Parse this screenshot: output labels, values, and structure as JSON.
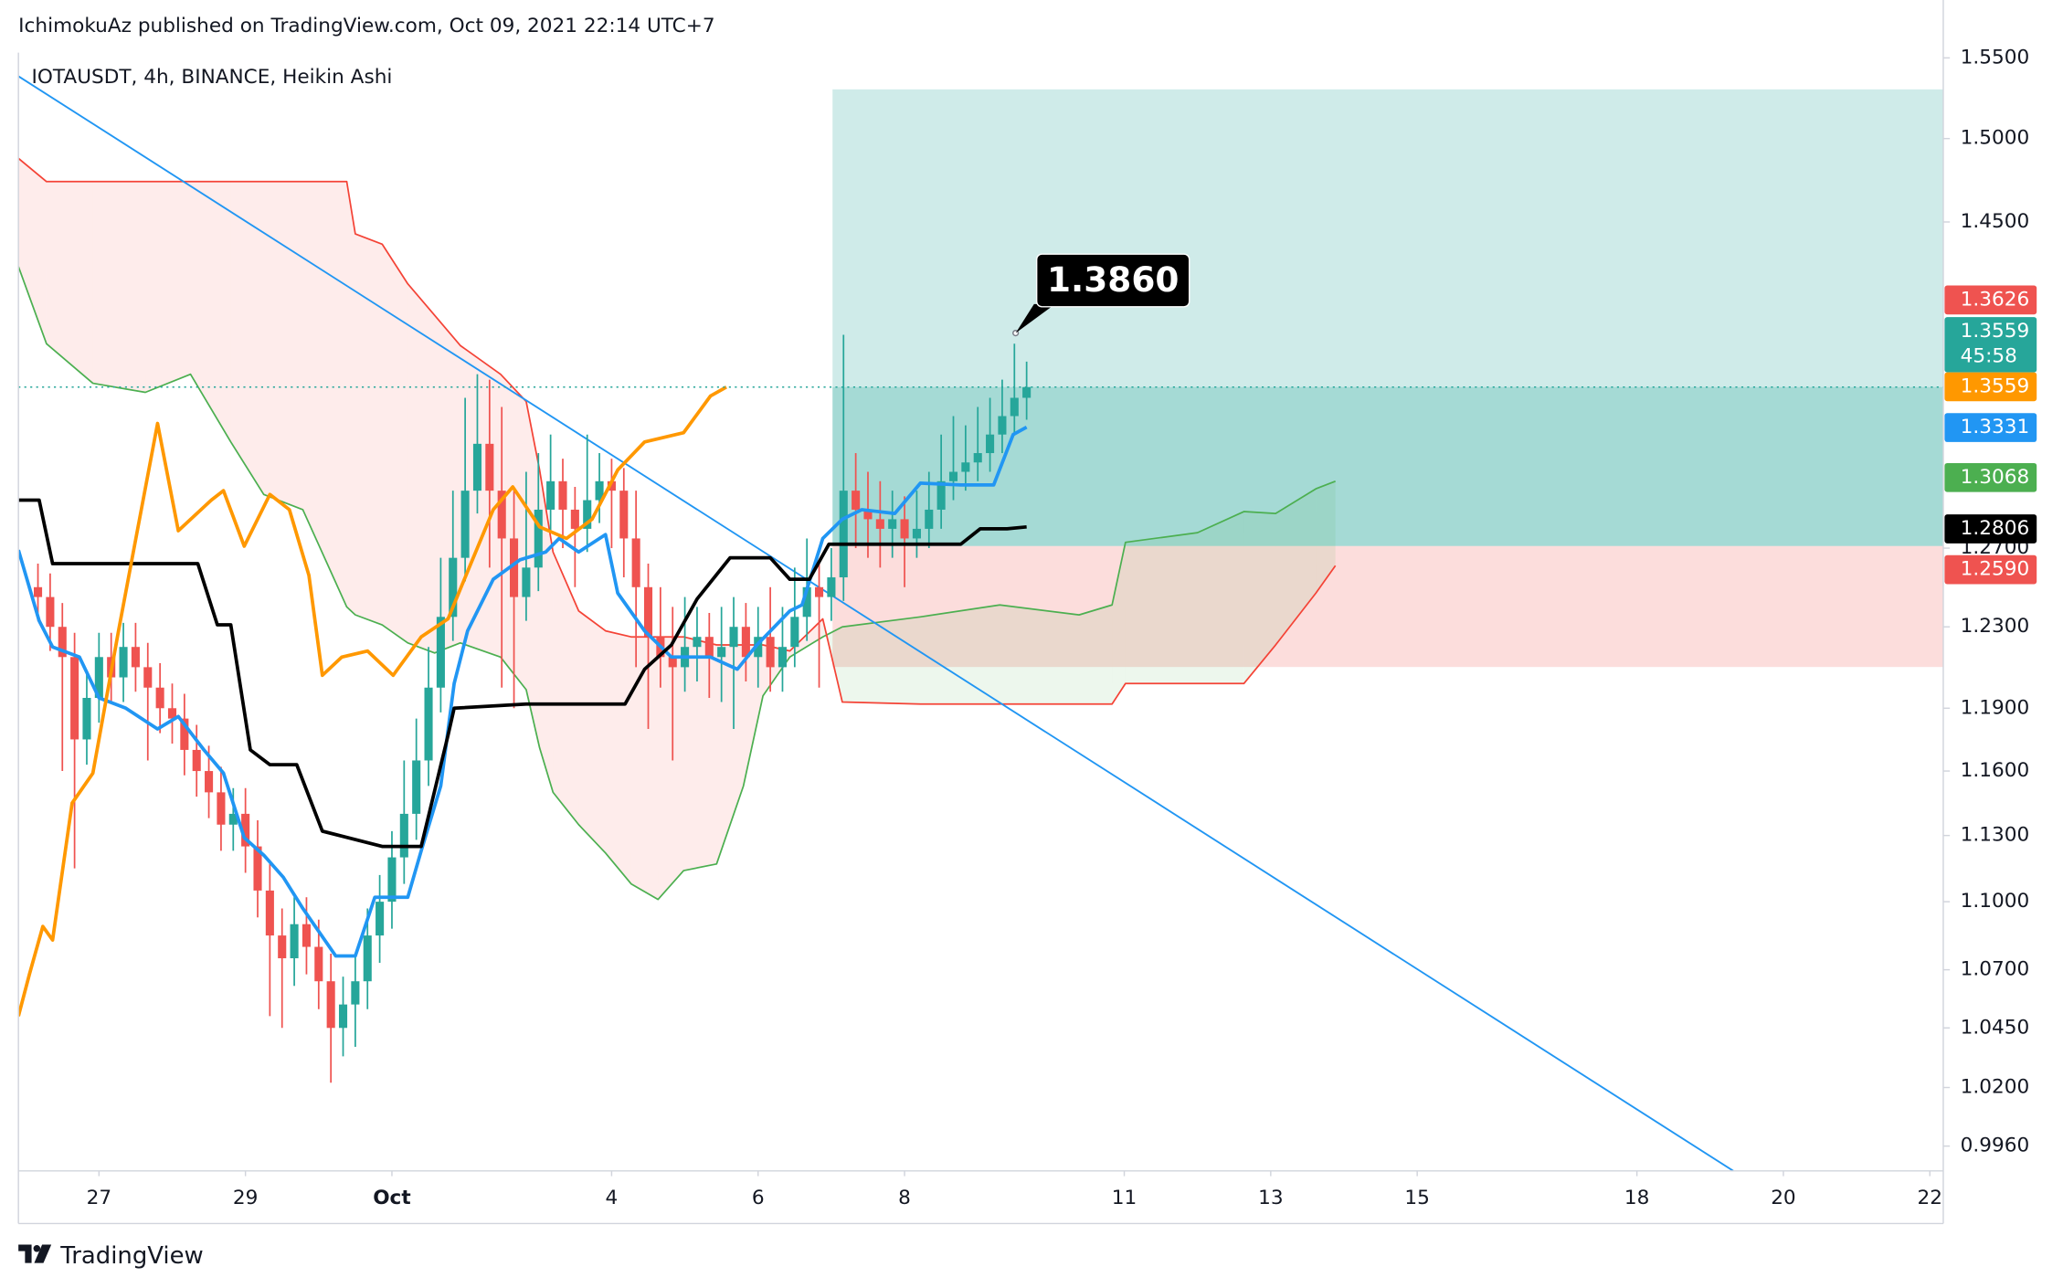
{
  "chart_data": {
    "type": "candlestick",
    "title": "IchimokuAz published on TradingView.com, Oct 09, 2021 22:14 UTC+7",
    "subtitle": "IOTAUSDT, 4h, BINANCE, Heikin Ashi",
    "footer": "TradingView",
    "log_scale": true,
    "xlim": [
      -6.6,
      151.1
    ],
    "ylim": [
      0.986,
      1.55
    ],
    "xticks": [
      {
        "value": 0,
        "label": "27"
      },
      {
        "value": 12,
        "label": "29"
      },
      {
        "value": 24,
        "label": "Oct"
      },
      {
        "value": 42,
        "label": "4"
      },
      {
        "value": 54,
        "label": "6"
      },
      {
        "value": 66,
        "label": "8"
      },
      {
        "value": 84,
        "label": "11"
      },
      {
        "value": 96,
        "label": "13"
      },
      {
        "value": 108,
        "label": "15"
      },
      {
        "value": 126,
        "label": "18"
      },
      {
        "value": 138,
        "label": "20"
      },
      {
        "value": 150,
        "label": "22"
      }
    ],
    "yticks": [
      {
        "value": 1.55,
        "label": "1.5500"
      },
      {
        "value": 1.5,
        "label": "1.5000"
      },
      {
        "value": 1.45,
        "label": "1.4500"
      },
      {
        "value": 1.27,
        "label": "1.2700"
      },
      {
        "value": 1.23,
        "label": "1.2300"
      },
      {
        "value": 1.19,
        "label": "1.1900"
      },
      {
        "value": 1.16,
        "label": "1.1600"
      },
      {
        "value": 1.13,
        "label": "1.1300"
      },
      {
        "value": 1.1,
        "label": "1.1000"
      },
      {
        "value": 1.07,
        "label": "1.0700"
      },
      {
        "value": 1.045,
        "label": "1.0450"
      },
      {
        "value": 1.02,
        "label": "1.0200"
      },
      {
        "value": 0.996,
        "label": "0.9960"
      }
    ],
    "up_color": "#26a69a",
    "down_color": "#ef5350",
    "x": [
      -5,
      -4,
      -3,
      -2,
      -1,
      0,
      1,
      2,
      3,
      4,
      5,
      6,
      7,
      8,
      9,
      10,
      11,
      12,
      13,
      14,
      15,
      16,
      17,
      18,
      19,
      20,
      21,
      22,
      23,
      24,
      25,
      26,
      27,
      28,
      29,
      30,
      31,
      32,
      33,
      34,
      35,
      36,
      37,
      38,
      39,
      40,
      41,
      42,
      43,
      44,
      45,
      46,
      47,
      48,
      49,
      50,
      51,
      52,
      53,
      54,
      55,
      56,
      57,
      58,
      59,
      60,
      61,
      62,
      63,
      64,
      65,
      66,
      67,
      68,
      69,
      70,
      71,
      72,
      73,
      74,
      75,
      76
    ],
    "open": [
      1.25,
      1.245,
      1.23,
      1.215,
      1.175,
      1.195,
      1.215,
      1.205,
      1.22,
      1.21,
      1.2,
      1.19,
      1.185,
      1.17,
      1.16,
      1.15,
      1.135,
      1.14,
      1.125,
      1.105,
      1.085,
      1.075,
      1.09,
      1.08,
      1.065,
      1.045,
      1.055,
      1.065,
      1.085,
      1.1,
      1.12,
      1.14,
      1.165,
      1.2,
      1.235,
      1.265,
      1.3,
      1.325,
      1.3,
      1.275,
      1.245,
      1.26,
      1.29,
      1.305,
      1.29,
      1.28,
      1.295,
      1.305,
      1.3,
      1.275,
      1.25,
      1.225,
      1.215,
      1.21,
      1.22,
      1.225,
      1.215,
      1.22,
      1.23,
      1.215,
      1.225,
      1.21,
      1.22,
      1.235,
      1.25,
      1.245,
      1.255,
      1.3,
      1.29,
      1.285,
      1.28,
      1.285,
      1.275,
      1.28,
      1.29,
      1.305,
      1.31,
      1.315,
      1.32,
      1.33,
      1.34,
      1.35
    ],
    "high": [
      1.262,
      1.257,
      1.242,
      1.227,
      1.207,
      1.227,
      1.227,
      1.232,
      1.232,
      1.222,
      1.212,
      1.202,
      1.197,
      1.182,
      1.172,
      1.162,
      1.152,
      1.152,
      1.137,
      1.117,
      1.097,
      1.102,
      1.102,
      1.092,
      1.077,
      1.067,
      1.077,
      1.097,
      1.112,
      1.132,
      1.165,
      1.185,
      1.22,
      1.265,
      1.3,
      1.35,
      1.363,
      1.36,
      1.345,
      1.3,
      1.31,
      1.32,
      1.33,
      1.317,
      1.302,
      1.33,
      1.32,
      1.317,
      1.312,
      1.3,
      1.262,
      1.25,
      1.24,
      1.245,
      1.24,
      1.237,
      1.24,
      1.245,
      1.242,
      1.24,
      1.25,
      1.24,
      1.26,
      1.275,
      1.262,
      1.27,
      1.385,
      1.32,
      1.31,
      1.305,
      1.3,
      1.297,
      1.3,
      1.31,
      1.33,
      1.34,
      1.335,
      1.345,
      1.35,
      1.36,
      1.38,
      1.37
    ],
    "low": [
      1.233,
      1.218,
      1.16,
      1.115,
      1.163,
      1.183,
      1.193,
      1.193,
      1.198,
      1.165,
      1.178,
      1.173,
      1.158,
      1.148,
      1.138,
      1.123,
      1.123,
      1.113,
      1.093,
      1.05,
      1.045,
      1.063,
      1.068,
      1.053,
      1.022,
      1.033,
      1.037,
      1.053,
      1.073,
      1.088,
      1.108,
      1.128,
      1.153,
      1.188,
      1.223,
      1.253,
      1.288,
      1.26,
      1.2,
      1.19,
      1.233,
      1.248,
      1.278,
      1.27,
      1.25,
      1.268,
      1.283,
      1.27,
      1.255,
      1.21,
      1.18,
      1.2,
      1.165,
      1.198,
      1.203,
      1.195,
      1.193,
      1.18,
      1.203,
      1.2,
      1.198,
      1.198,
      1.21,
      1.223,
      1.2,
      1.233,
      1.243,
      1.27,
      1.265,
      1.26,
      1.265,
      1.25,
      1.265,
      1.27,
      1.28,
      1.295,
      1.3,
      1.305,
      1.31,
      1.32,
      1.33,
      1.338
    ],
    "close": [
      1.245,
      1.23,
      1.215,
      1.175,
      1.195,
      1.215,
      1.205,
      1.22,
      1.21,
      1.2,
      1.19,
      1.185,
      1.17,
      1.16,
      1.15,
      1.135,
      1.14,
      1.125,
      1.105,
      1.085,
      1.075,
      1.09,
      1.08,
      1.065,
      1.045,
      1.055,
      1.065,
      1.085,
      1.1,
      1.12,
      1.14,
      1.165,
      1.2,
      1.235,
      1.265,
      1.3,
      1.325,
      1.3,
      1.275,
      1.245,
      1.26,
      1.29,
      1.305,
      1.29,
      1.28,
      1.295,
      1.305,
      1.3,
      1.275,
      1.25,
      1.225,
      1.215,
      1.21,
      1.22,
      1.225,
      1.215,
      1.22,
      1.23,
      1.215,
      1.225,
      1.21,
      1.22,
      1.235,
      1.25,
      1.245,
      1.255,
      1.3,
      1.29,
      1.285,
      1.28,
      1.285,
      1.275,
      1.28,
      1.29,
      1.305,
      1.31,
      1.315,
      1.32,
      1.33,
      1.34,
      1.35,
      1.3559
    ],
    "cloud": {
      "x": [
        -6.6,
        -4.3,
        -0.5,
        3.8,
        7.5,
        10.8,
        13.5,
        16.7,
        20.3,
        21.0,
        23.2,
        25.3,
        27.5,
        29.6,
        32.9,
        35.0,
        36.1,
        37.2,
        39.3,
        41.5,
        43.6,
        45.8,
        47.9,
        50.6,
        52.8,
        54.4,
        56.6,
        59.3,
        60.9,
        67.3,
        73.8,
        80.3,
        83.0,
        84.1,
        90.0,
        93.8,
        96.4,
        99.7,
        101.3
      ],
      "lead_a": [
        1.424,
        1.38,
        1.358,
        1.353,
        1.363,
        1.326,
        1.298,
        1.29,
        1.24,
        1.236,
        1.231,
        1.222,
        1.217,
        1.222,
        1.215,
        1.199,
        1.171,
        1.15,
        1.135,
        1.122,
        1.108,
        1.101,
        1.114,
        1.117,
        1.153,
        1.196,
        1.215,
        1.225,
        1.23,
        1.235,
        1.241,
        1.236,
        1.241,
        1.273,
        1.278,
        1.289,
        1.288,
        1.301,
        1.305
      ],
      "lead_b": [
        1.488,
        1.474,
        1.474,
        1.474,
        1.474,
        1.474,
        1.474,
        1.474,
        1.474,
        1.443,
        1.437,
        1.414,
        1.396,
        1.379,
        1.363,
        1.348,
        1.311,
        1.268,
        1.238,
        1.228,
        1.225,
        1.225,
        1.225,
        1.221,
        1.221,
        1.221,
        1.218,
        1.234,
        1.193,
        1.192,
        1.192,
        1.192,
        1.192,
        1.202,
        1.202,
        1.202,
        1.221,
        1.247,
        1.261
      ],
      "color_a": "#4caf50",
      "color_b": "#f44336"
    },
    "lines": [
      {
        "color": "#2196f3",
        "x": [
          -6.6,
          -4.9,
          -3.8,
          -1.6,
          0,
          2.2,
          4.8,
          6.5,
          8.6,
          10.2,
          11.9,
          13.5,
          15.1,
          16.7,
          19.4,
          21.0,
          22.6,
          25.3,
          26.4,
          28.0,
          29.1,
          30.2,
          32.3,
          34.5,
          36.6,
          37.7,
          39.3,
          41.5,
          42.5,
          44.7,
          46.9,
          50.1,
          52.3,
          53.9,
          56.6,
          57.6,
          59.3,
          60.9,
          62.5,
          65.2,
          67.3,
          70.6,
          73.3,
          74.9,
          76.0
        ],
        "values": [
          1.269,
          1.233,
          1.22,
          1.215,
          1.195,
          1.19,
          1.18,
          1.186,
          1.17,
          1.159,
          1.129,
          1.121,
          1.111,
          1.097,
          1.076,
          1.076,
          1.102,
          1.102,
          1.123,
          1.153,
          1.202,
          1.228,
          1.254,
          1.264,
          1.268,
          1.275,
          1.268,
          1.277,
          1.247,
          1.228,
          1.215,
          1.215,
          1.209,
          1.221,
          1.238,
          1.241,
          1.275,
          1.285,
          1.29,
          1.288,
          1.304,
          1.303,
          1.303,
          1.33,
          1.334
        ]
      },
      {
        "color": "#000000",
        "x": [
          -6.6,
          -4.9,
          -3.8,
          8.1,
          9.7,
          10.8,
          12.4,
          14.0,
          16.2,
          18.3,
          23.2,
          26.4,
          28.6,
          29.1,
          35.0,
          43.1,
          44.7,
          46.9,
          49.0,
          51.7,
          55.0,
          56.6,
          58.2,
          59.8,
          67.3,
          70.6,
          72.2,
          74.4,
          76.0
        ],
        "values": [
          1.295,
          1.295,
          1.262,
          1.262,
          1.231,
          1.231,
          1.17,
          1.163,
          1.163,
          1.132,
          1.125,
          1.125,
          1.177,
          1.19,
          1.192,
          1.192,
          1.209,
          1.221,
          1.244,
          1.265,
          1.265,
          1.254,
          1.254,
          1.272,
          1.272,
          1.272,
          1.28,
          1.28,
          1.281
        ]
      },
      {
        "color": "#ff9800",
        "x": [
          -6.6,
          -5.7,
          -4.6,
          -3.8,
          -2.2,
          -0.5,
          1.6,
          3.2,
          4.8,
          6.5,
          9.2,
          10.2,
          11.9,
          14.0,
          15.6,
          17.2,
          18.3,
          19.9,
          22.0,
          24.1,
          26.4,
          28.6,
          30.2,
          32.3,
          33.9,
          36.1,
          38.3,
          40.4,
          42.5,
          44.7,
          47.9,
          50.1,
          51.4
        ],
        "values": [
          1.05,
          1.068,
          1.089,
          1.083,
          1.145,
          1.159,
          1.228,
          1.281,
          1.336,
          1.279,
          1.295,
          1.3,
          1.271,
          1.298,
          1.29,
          1.256,
          1.206,
          1.215,
          1.218,
          1.206,
          1.225,
          1.234,
          1.258,
          1.29,
          1.302,
          1.281,
          1.275,
          1.285,
          1.311,
          1.326,
          1.331,
          1.351,
          1.3559
        ]
      }
    ],
    "trendline": {
      "color": "#2196f3",
      "x": [
        -6.6,
        133.9
      ],
      "values": [
        1.5385,
        0.986
      ]
    },
    "position": {
      "x": [
        60.1,
        151.1
      ],
      "target": 1.5303,
      "entry": 1.2711,
      "stop": 1.2101
    },
    "callout": {
      "x": 75.1,
      "value": 1.386,
      "label": "1.3860"
    },
    "price_labels": [
      {
        "label": "1.3626",
        "color": "#ef5350"
      },
      {
        "label": "1.3559",
        "sub": "45:58",
        "color": "#26a69a"
      },
      {
        "label": "1.3559",
        "color": "#ff9800"
      },
      {
        "label": "1.3331",
        "color": "#2196f3"
      },
      {
        "label": "1.3068",
        "color": "#4caf50"
      },
      {
        "label": "1.2806",
        "color": "#000000"
      },
      {
        "label": "1.2590",
        "color": "#ef5350"
      }
    ]
  }
}
